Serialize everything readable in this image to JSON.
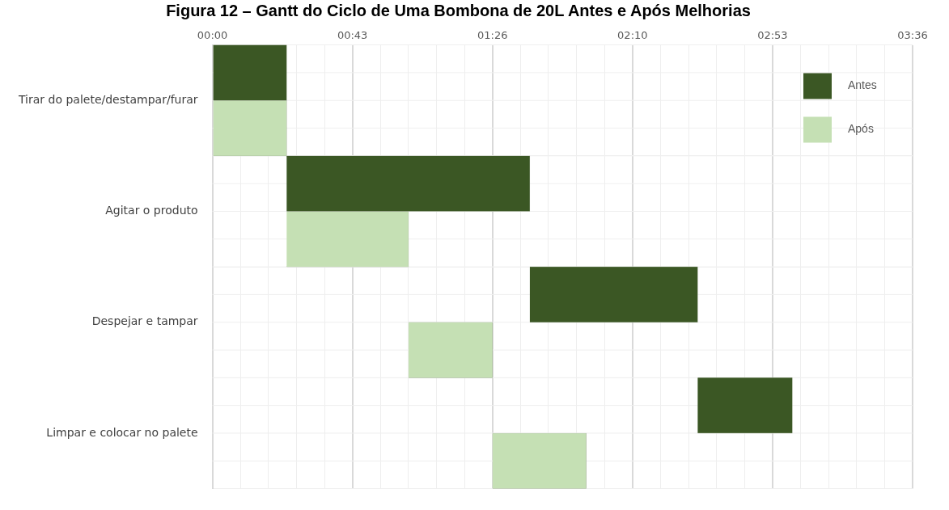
{
  "chart_data": {
    "type": "bar",
    "orientation": "horizontal",
    "title": "Figura 12 – Gantt do Ciclo de Uma Bombona de 20L Antes e Após Melhorias",
    "categories": [
      "Tirar do palete/destampar/furar",
      "Agitar o produto",
      "Despejar e tampar",
      "Limpar e colocar no palete"
    ],
    "series": [
      {
        "name": "Antes",
        "color": "#3b5724",
        "base": [
          0,
          22.9,
          97.9,
          149.7
        ],
        "values": [
          22.9,
          75,
          51.8,
          29.2
        ]
      },
      {
        "name": "Após",
        "color": "#c5e0b4",
        "base": [
          0,
          22.9,
          60.5,
          86.4
        ],
        "values": [
          22.9,
          37.6,
          25.9,
          28.9
        ]
      }
    ],
    "xlim": [
      0,
      216
    ],
    "xticks": [
      {
        "value": 0,
        "label": "00:00"
      },
      {
        "value": 8.64,
        "label": null
      },
      {
        "value": 17.28,
        "label": null
      },
      {
        "value": 25.92,
        "label": null
      },
      {
        "value": 34.56,
        "label": null
      },
      {
        "value": 43.2,
        "label": "00:43"
      },
      {
        "value": 51.84,
        "label": null
      },
      {
        "value": 60.48,
        "label": null
      },
      {
        "value": 69.12,
        "label": null
      },
      {
        "value": 77.76,
        "label": null
      },
      {
        "value": 86.4,
        "label": "01:26"
      },
      {
        "value": 95.04,
        "label": null
      },
      {
        "value": 103.68,
        "label": null
      },
      {
        "value": 112.32,
        "label": null
      },
      {
        "value": 120.96,
        "label": null
      },
      {
        "value": 129.6,
        "label": "02:10"
      },
      {
        "value": 138.24,
        "label": null
      },
      {
        "value": 146.88,
        "label": null
      },
      {
        "value": 155.52,
        "label": null
      },
      {
        "value": 164.16,
        "label": null
      },
      {
        "value": 172.8,
        "label": "02:53"
      },
      {
        "value": 181.44,
        "label": null
      },
      {
        "value": 190.08,
        "label": null
      },
      {
        "value": 198.72,
        "label": null
      },
      {
        "value": 207.36,
        "label": null
      },
      {
        "value": 216,
        "label": "03:36"
      }
    ],
    "grid": true,
    "legend": "top right"
  }
}
